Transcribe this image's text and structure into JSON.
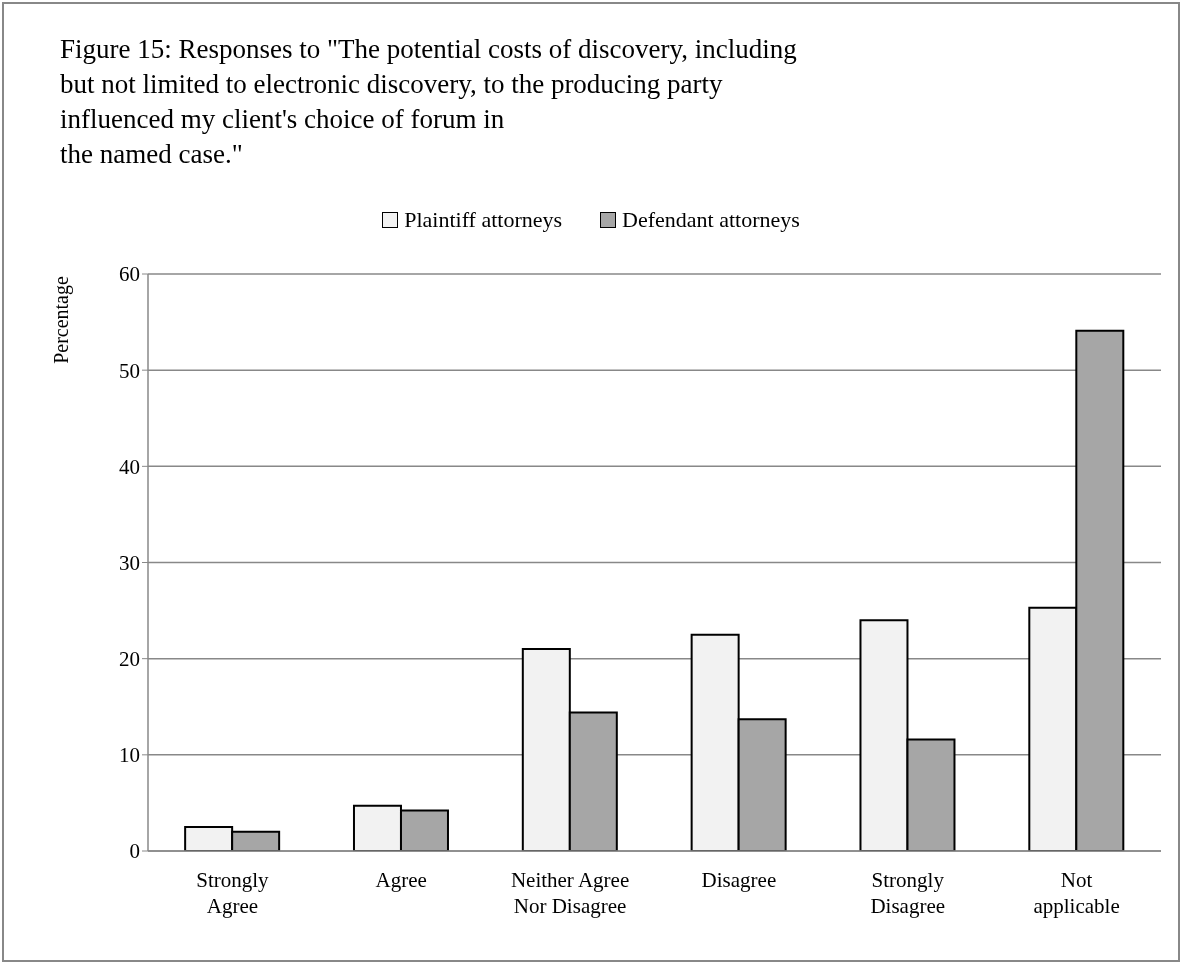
{
  "chart_data": {
    "type": "bar",
    "title": "Figure 15: Responses to \"The potential costs of discovery, including\nbut not limited to electronic discovery, to the producing party\ninfluenced my client's choice of forum in\nthe named case.\"",
    "ylabel": "Percentage",
    "categories": [
      "Strongly Agree",
      "Agree",
      "Neither Agree Nor Disagree",
      "Disagree",
      "Strongly Disagree",
      "Not applicable"
    ],
    "series": [
      {
        "name": "Plaintiff attorneys",
        "color": "#f2f2f2",
        "values": [
          2.5,
          4.7,
          21.0,
          22.5,
          24.0,
          25.3
        ]
      },
      {
        "name": "Defendant attorneys",
        "color": "#a6a6a6",
        "values": [
          2.0,
          4.2,
          14.4,
          13.7,
          11.6,
          54.1
        ]
      }
    ],
    "ylim": [
      0,
      60
    ],
    "yticks": [
      0,
      10,
      20,
      30,
      40,
      50,
      60
    ],
    "grid": "y",
    "legend": "top"
  }
}
